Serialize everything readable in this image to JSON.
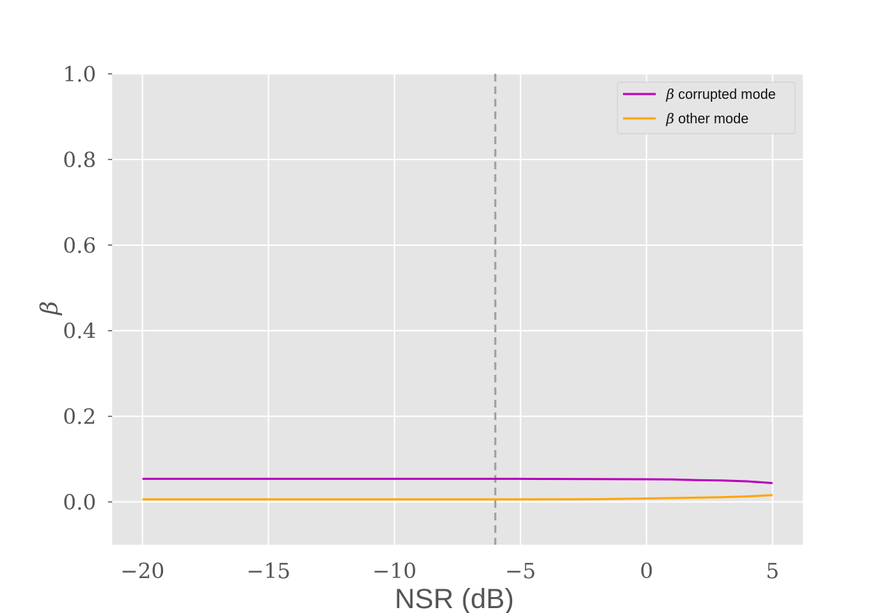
{
  "chart_data": {
    "type": "line",
    "xlabel": "NSR (dB)",
    "ylabel": "β",
    "xlim": [
      -21.2,
      6.2
    ],
    "ylim": [
      -0.1,
      1.0
    ],
    "x_ticks": [
      -20,
      -15,
      -10,
      -5,
      0,
      5
    ],
    "x_tick_labels": [
      "−20",
      "−15",
      "−10",
      "−5",
      "0",
      "5"
    ],
    "y_ticks": [
      0.0,
      0.2,
      0.4,
      0.6,
      0.8,
      1.0
    ],
    "y_tick_labels": [
      "0.0",
      "0.2",
      "0.4",
      "0.6",
      "0.8",
      "1.0"
    ],
    "grid": true,
    "legend_position": "top-right",
    "vline": {
      "x": -6,
      "style": "dashed",
      "color": "#a0a0a0"
    },
    "series": [
      {
        "name": "β corrupted mode",
        "legend_symbol": "β",
        "legend_text": "corrupted mode",
        "color": "#bb00bb",
        "x": [
          -20,
          -15,
          -10,
          -6,
          -5,
          -2,
          0,
          1,
          2,
          3,
          4,
          5
        ],
        "y": [
          0.054,
          0.054,
          0.054,
          0.054,
          0.054,
          0.0535,
          0.053,
          0.0525,
          0.051,
          0.05,
          0.048,
          0.044
        ]
      },
      {
        "name": "β other mode",
        "legend_symbol": "β",
        "legend_text": "other mode",
        "color": "#ffa500",
        "x": [
          -20,
          -15,
          -10,
          -6,
          -5,
          -2,
          0,
          1,
          2,
          3,
          4,
          5
        ],
        "y": [
          0.006,
          0.006,
          0.006,
          0.006,
          0.006,
          0.0065,
          0.008,
          0.009,
          0.01,
          0.011,
          0.013,
          0.016
        ]
      }
    ]
  }
}
